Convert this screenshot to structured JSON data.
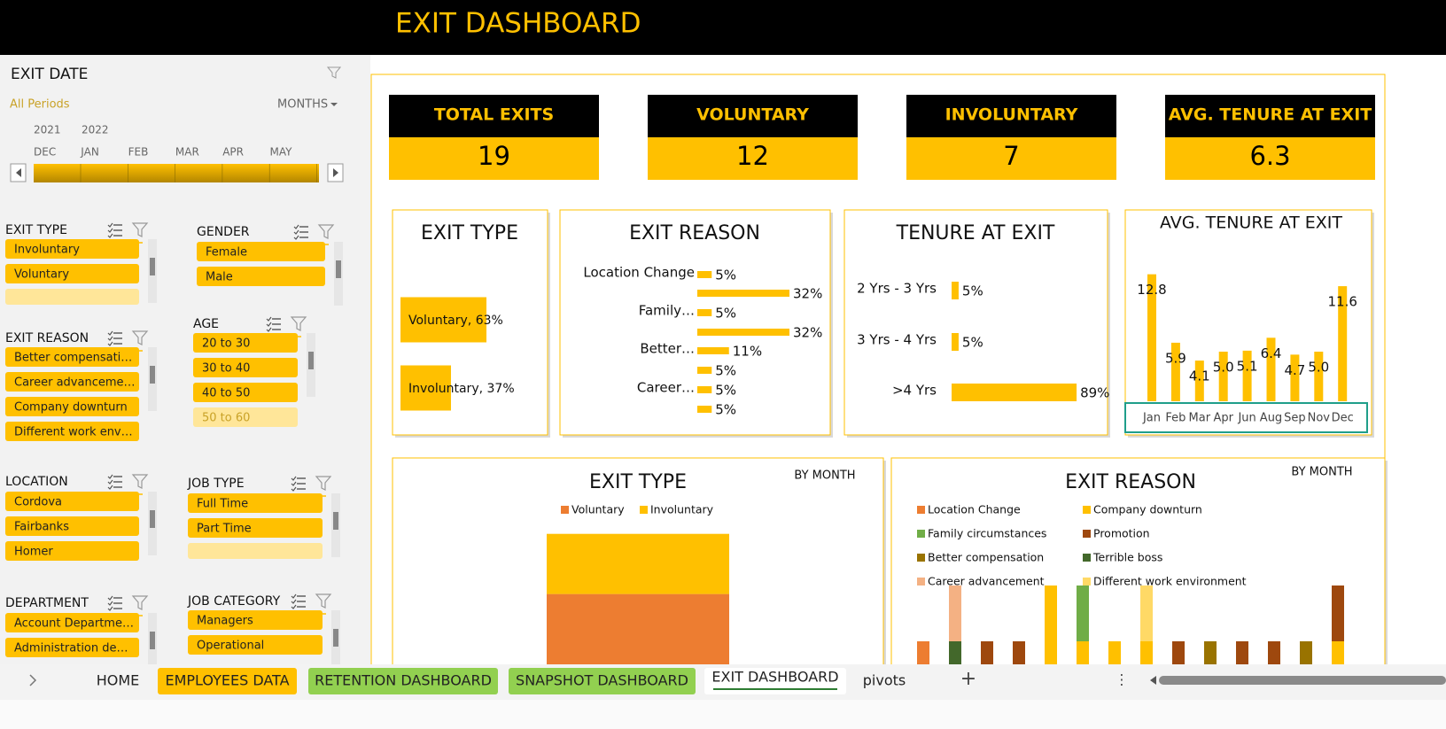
{
  "header": {
    "title": "EXIT DASHBOARD"
  },
  "timeline": {
    "title": "EXIT DATE",
    "period": "All Periods",
    "level": "MONTHS",
    "years": [
      "2021",
      "2022"
    ],
    "months": [
      "DEC",
      "JAN",
      "FEB",
      "MAR",
      "APR",
      "MAY"
    ]
  },
  "slicers": [
    {
      "title": "EXIT TYPE",
      "items": [
        "Involuntary",
        "Voluntary"
      ]
    },
    {
      "title": "GENDER",
      "items": [
        "Female",
        "Male"
      ]
    },
    {
      "title": "EXIT REASON",
      "items": [
        "Better compensati…",
        "Career advanceme…",
        "Company downturn",
        "Different work env…"
      ]
    },
    {
      "title": "AGE",
      "items": [
        "20 to 30",
        "30 to 40",
        "40 to 50",
        "50 to 60"
      ]
    },
    {
      "title": "LOCATION",
      "items": [
        "Cordova",
        "Fairbanks",
        "Homer"
      ]
    },
    {
      "title": "JOB TYPE",
      "items": [
        "Full Time",
        "Part Time"
      ]
    },
    {
      "title": "DEPARTMENT",
      "items": [
        "Account Departme…",
        "Administration de…"
      ]
    },
    {
      "title": "JOB CATEGORY",
      "items": [
        "Managers",
        "Operational"
      ]
    }
  ],
  "kpis": [
    {
      "label": "TOTAL EXITS",
      "value": 19
    },
    {
      "label": "VOLUNTARY",
      "value": 12
    },
    {
      "label": "INVOLUNTARY",
      "value": 7
    },
    {
      "label": "AVG. TENURE AT EXIT",
      "value": 6.3
    }
  ],
  "charts": [
    {
      "type": "bar",
      "orientation": "horizontal",
      "title": "EXIT TYPE",
      "values": [
        63,
        37
      ],
      "value_labels": [
        "Voluntary, 63%",
        "Involuntary, 37%"
      ],
      "color": "#ffc000"
    },
    {
      "type": "bar",
      "orientation": "horizontal",
      "title": "EXIT REASON",
      "categories": [
        "Location Change",
        null,
        "Family…",
        null,
        "Better…",
        null,
        "Career…",
        null
      ],
      "values": [
        5,
        32,
        5,
        32,
        11,
        5,
        5,
        5
      ],
      "value_labels": [
        "5%",
        "32%",
        "5%",
        "32%",
        "11%",
        "5%",
        "5%",
        "5%"
      ],
      "color": "#ffc000"
    },
    {
      "type": "bar",
      "orientation": "horizontal",
      "title": "TENURE AT EXIT",
      "categories": [
        "2 Yrs - 3 Yrs",
        "3 Yrs - 4 Yrs",
        ">4 Yrs"
      ],
      "values": [
        5,
        5,
        89
      ],
      "value_labels": [
        "5%",
        "5%",
        "89%"
      ],
      "color": "#ffc000"
    },
    {
      "type": "bar",
      "orientation": "vertical",
      "title": "AVG. TENURE AT EXIT",
      "categories": [
        "Jan",
        "Feb",
        "Mar",
        "Apr",
        "Jun",
        "Aug",
        "Sep",
        "Nov",
        "Dec"
      ],
      "values": [
        12.8,
        5.9,
        4.1,
        5.0,
        5.1,
        6.4,
        4.7,
        5.0,
        11.6
      ],
      "value_labels": [
        "12.8",
        "5.9",
        "4.1",
        "5.0",
        "5.1",
        "6.4",
        "4.7",
        "5.0",
        "11.6"
      ],
      "color": "#ffc000"
    },
    {
      "type": "stacked_bar",
      "title": "EXIT TYPE",
      "subtitle": "BY MONTH",
      "categories": [
        null
      ],
      "series": [
        {
          "name": "Voluntary",
          "color": "#ed7d31",
          "values": [
            12
          ]
        },
        {
          "name": "Involuntary",
          "color": "#ffc000",
          "values": [
            7
          ]
        }
      ]
    },
    {
      "type": "stacked_bar",
      "title": "EXIT REASON",
      "subtitle": "BY MONTH",
      "categories": [
        null,
        null,
        null,
        null,
        null,
        null,
        null,
        null,
        null,
        null,
        null,
        null,
        null,
        null
      ],
      "series": [
        {
          "name": "Location Change",
          "color": "#ed7d31",
          "values": [
            1,
            0,
            0,
            0,
            0,
            0,
            0,
            0,
            0,
            0,
            0,
            0,
            0,
            0
          ]
        },
        {
          "name": "Company downturn",
          "color": "#ffc000",
          "values": [
            0,
            0,
            0,
            0,
            2,
            1,
            1,
            1,
            0,
            0,
            0,
            0,
            0,
            1
          ]
        },
        {
          "name": "Family circumstances",
          "color": "#70ad47",
          "values": [
            0,
            0,
            0,
            0,
            0,
            1,
            0,
            0,
            0,
            0,
            0,
            0,
            0,
            0
          ]
        },
        {
          "name": "Promotion",
          "color": "#9e480e",
          "values": [
            0,
            0,
            1,
            1,
            0,
            0,
            0,
            0,
            1,
            0,
            1,
            1,
            0,
            1
          ]
        },
        {
          "name": "Better compensation",
          "color": "#997300",
          "values": [
            0,
            0,
            0,
            0,
            0,
            0,
            0,
            0,
            0,
            1,
            0,
            0,
            1,
            0
          ]
        },
        {
          "name": "Terrible boss",
          "color": "#43682b",
          "values": [
            0,
            1,
            0,
            0,
            0,
            0,
            0,
            0,
            0,
            0,
            0,
            0,
            0,
            0
          ]
        },
        {
          "name": "Career advancement",
          "color": "#f4b183",
          "values": [
            0,
            1,
            0,
            0,
            0,
            0,
            0,
            0,
            0,
            0,
            0,
            0,
            0,
            0
          ]
        },
        {
          "name": "Different work environment",
          "color": "#ffd966",
          "values": [
            0,
            0,
            0,
            0,
            0,
            0,
            0,
            1,
            0,
            0,
            0,
            0,
            0,
            0
          ]
        }
      ]
    }
  ],
  "tabs": [
    "HOME",
    "EMPLOYEES DATA",
    "RETENTION DASHBOARD",
    "SNAPSHOT DASHBOARD",
    "EXIT DASHBOARD",
    "pivots"
  ]
}
